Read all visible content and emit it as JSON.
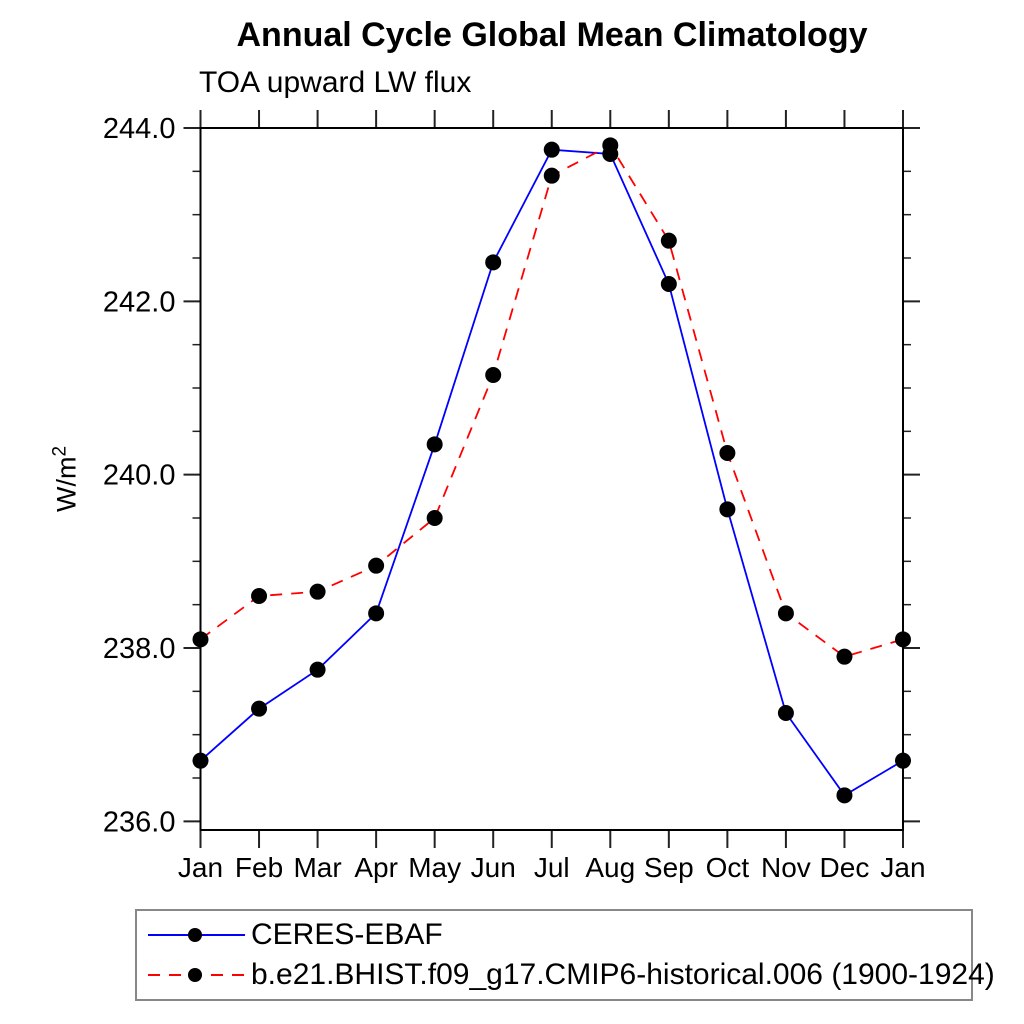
{
  "chart_data": {
    "type": "line",
    "title": "Annual Cycle Global Mean Climatology",
    "subtitle": "TOA upward LW flux",
    "ylabel_base": "W/m",
    "ylabel_exp": "2",
    "categories": [
      "Jan",
      "Feb",
      "Mar",
      "Apr",
      "May",
      "Jun",
      "Jul",
      "Aug",
      "Sep",
      "Oct",
      "Nov",
      "Dec",
      "Jan"
    ],
    "series": [
      {
        "name": "CERES-EBAF",
        "color": "#0000ff",
        "line_style": "solid",
        "marker": "circle",
        "marker_color": "#000000",
        "values": [
          236.7,
          237.3,
          237.75,
          238.4,
          240.35,
          242.45,
          243.75,
          243.7,
          242.2,
          239.6,
          237.25,
          236.3,
          236.7
        ]
      },
      {
        "name": "b.e21.BHIST.f09_g17.CMIP6-historical.006 (1900-1924)",
        "color": "#ff0000",
        "line_style": "dashed",
        "marker": "circle",
        "marker_color": "#000000",
        "values": [
          238.1,
          238.6,
          238.65,
          238.95,
          239.5,
          241.15,
          243.45,
          243.8,
          242.7,
          240.25,
          238.4,
          237.9,
          238.1
        ]
      }
    ],
    "y_axis": {
      "frame_min": 235.9,
      "frame_max": 244.0,
      "major_ticks": [
        236.0,
        238.0,
        240.0,
        242.0,
        244.0
      ],
      "major_tick_labels": [
        "236.0",
        "238.0",
        "240.0",
        "242.0",
        "244.0"
      ],
      "minor_step": 0.5,
      "grid": false
    },
    "x_axis": {
      "grid": false,
      "minor_ticks": false
    },
    "legend_position": "bottom-left",
    "axis_color": "#000000",
    "tick_color": "#222222"
  }
}
